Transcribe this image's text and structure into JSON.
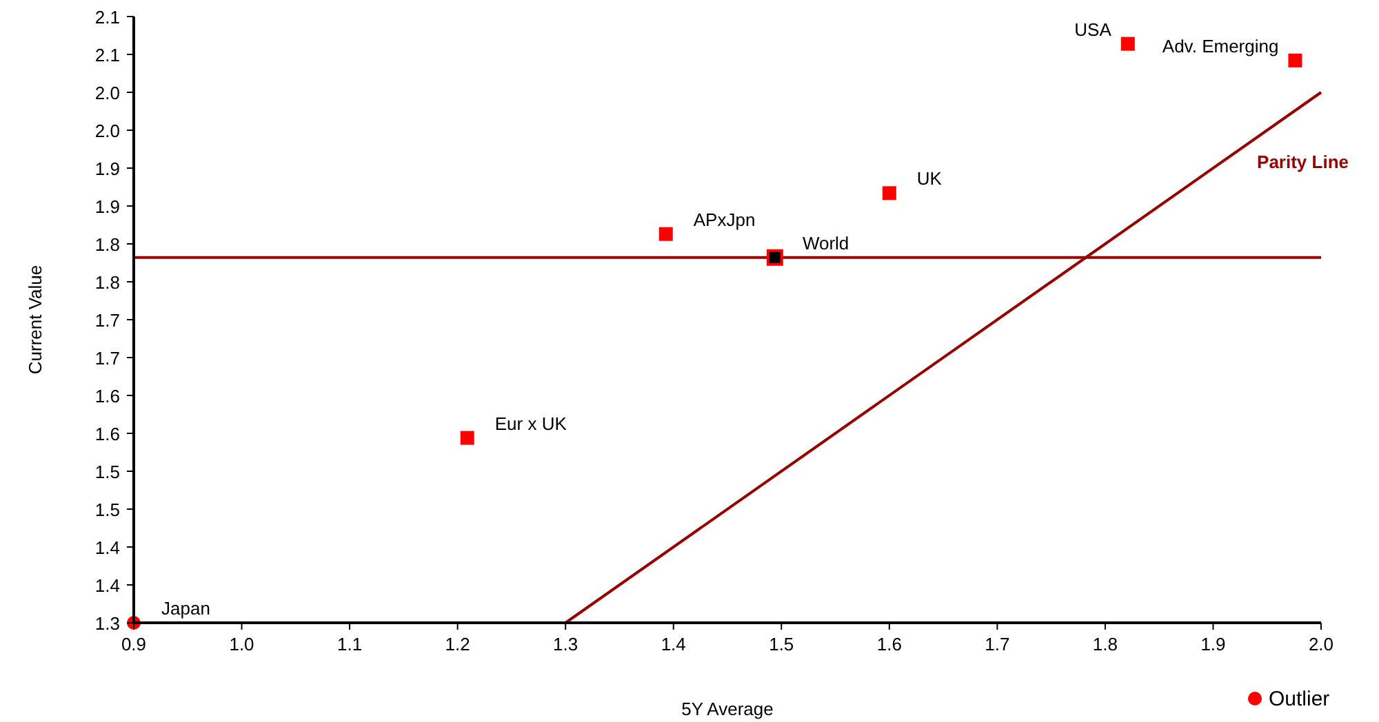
{
  "chart_data": {
    "type": "scatter",
    "xlabel": "5Y Average",
    "ylabel": "Current Value",
    "xlim": [
      0.9,
      2.0
    ],
    "xticks": [
      {
        "value": 0.9,
        "label": "0.9"
      },
      {
        "value": 1.0,
        "label": "1.0"
      },
      1.1,
      1.2,
      1.3,
      1.4,
      1.5,
      1.6,
      1.7,
      1.8,
      1.9,
      {
        "value": 2.0,
        "label": "2.0"
      }
    ],
    "ylim": [
      1.3,
      2.1
    ],
    "yticks": [
      1.3,
      {
        "value": 1.35,
        "label": "1.4"
      },
      1.4,
      {
        "value": 1.45,
        "label": "1.5"
      },
      1.5,
      {
        "value": 1.55,
        "label": "1.6"
      },
      1.6,
      {
        "value": 1.65,
        "label": "1.7"
      },
      1.7,
      {
        "value": 1.75,
        "label": "1.8"
      },
      1.8,
      {
        "value": 1.85,
        "label": "1.9"
      },
      1.9,
      {
        "value": 1.95,
        "label": "2.0"
      },
      {
        "value": 2.0,
        "label": "2.0"
      },
      {
        "value": 2.05,
        "label": "2.1"
      },
      2.1
    ],
    "series": [
      {
        "color": "#ff0000",
        "marker": "square",
        "x": [
          1.821,
          1.976,
          1.6,
          1.393,
          1.209
        ],
        "values": [
          2.064,
          2.042,
          1.867,
          1.813,
          1.544
        ]
      },
      {
        "color": "#000000",
        "marker": "square",
        "x": [
          1.494
        ],
        "values": [
          1.782
        ]
      },
      {
        "name": "Outlier",
        "color": "#ff0000",
        "marker": "circle",
        "x": [
          0.9
        ],
        "values": [
          1.3
        ]
      },
      {
        "name": "Parity Line",
        "type": "line",
        "color": "#990000",
        "x": [
          1.3,
          2.0
        ],
        "values": [
          1.3,
          2.0
        ]
      }
    ],
    "ref_lines": [
      {
        "axis": "y",
        "value": 1.782,
        "color": "#990000"
      }
    ],
    "annotations": [
      {
        "text": "USA",
        "x": 1.821,
        "y": 2.064
      },
      {
        "text": "Adv. Emerging",
        "x": 1.976,
        "y": 2.042
      },
      {
        "text": "UK",
        "x": 1.6,
        "y": 1.867
      },
      {
        "text": "APxJpn",
        "x": 1.393,
        "y": 1.813
      },
      {
        "text": "World",
        "x": 1.494,
        "y": 1.782
      },
      {
        "text": "Eur x UK",
        "x": 1.209,
        "y": 1.544
      },
      {
        "text": "Japan",
        "x": 0.9,
        "y": 1.3
      }
    ],
    "grid": false,
    "legend": "bottom right"
  }
}
